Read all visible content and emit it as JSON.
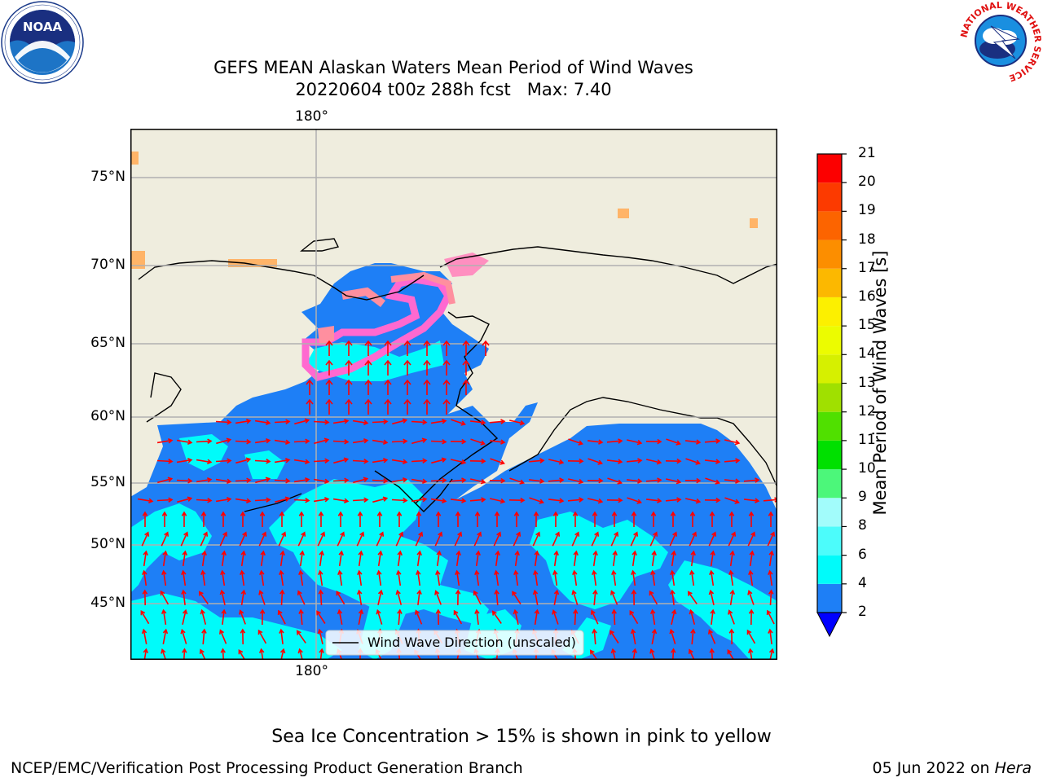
{
  "title": {
    "line1": "GEFS MEAN Alaskan Waters Mean Period of Wind Waves",
    "line2": "20220604 t00z 288h fcst   Max: 7.40"
  },
  "map": {
    "lon_label_top": "180°",
    "lon_label_bottom": "180°",
    "lat_labels": [
      "75°N",
      "70°N",
      "65°N",
      "60°N",
      "55°N",
      "50°N",
      "45°N"
    ],
    "legend": "Wind Wave Direction (unscaled)",
    "colors": {
      "land": "#efedde",
      "ocean_low": "#1e7ff6",
      "ocean_mid": "#00fbfa",
      "arrow": "#ff0000",
      "grid": "#b0b0b0"
    }
  },
  "colorbar": {
    "label": "Mean Period of Wind Waves [s]",
    "ticks": [
      "2",
      "4",
      "6",
      "8",
      "9",
      "10",
      "11",
      "12",
      "13",
      "14",
      "15",
      "16",
      "17",
      "18",
      "19",
      "20",
      "21"
    ],
    "colors": [
      "#1e7ff6",
      "#00fbfa",
      "#4cfcfb",
      "#a2fcfb",
      "#4cf77a",
      "#00e000",
      "#50e000",
      "#a0e000",
      "#d6f000",
      "#ecfc00",
      "#fcf000",
      "#fcb800",
      "#fc8e00",
      "#fc6400",
      "#fc3a00",
      "#fc0000"
    ],
    "under_color": "#0000ff"
  },
  "caption": "Sea Ice Concentration > 15% is shown in pink to yellow",
  "footer": {
    "left": "NCEP/EMC/Verification Post Processing Product Generation Branch",
    "right_prefix": "05 Jun 2022 on ",
    "right_italic": "Hera"
  },
  "logos": {
    "left": "NOAA",
    "right_ring": "NATIONAL WEATHER SERVICE"
  }
}
